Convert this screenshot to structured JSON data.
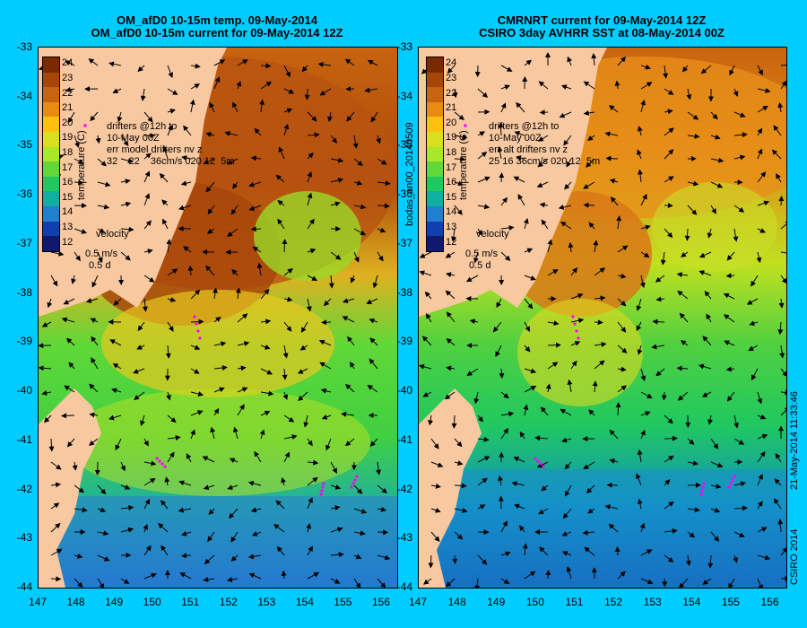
{
  "panels": [
    {
      "title_line1": "OM_afD0 10-15m temp. 09-May-2014",
      "title_line2": "OM_afD0 10-15m current for 09-May-2014 12Z",
      "drifters_text": "drifters @12h to\n10-May 00Z\nerr model drifters nv z\n32    22    36cm/s 020 12  5m",
      "velocity_label": "velocity",
      "velocity_scale": "0.5 m/s",
      "velocity_time": "0.5 d",
      "colorbar_label": "temperature (C)"
    },
    {
      "title_line1": "CMRNRT current for 09-May-2014 12Z",
      "title_line2": "CSIRO 3day AVHRR SST at 08-May-2014 00Z",
      "drifters_text": "drifters @12h to\n10-May 00Z\nerr alt drifters nv z\n25 16 36cm/s 020 12  5m",
      "velocity_label": "velocity",
      "velocity_scale": "0.5 m/s",
      "velocity_time": "0.5 d",
      "colorbar_label": "temperature (C)"
    }
  ],
  "axes": {
    "lon_ticks": [
      "147",
      "148",
      "149",
      "150",
      "151",
      "152",
      "153",
      "154",
      "155",
      "156"
    ],
    "lat_ticks": [
      "-33",
      "-34",
      "-35",
      "-36",
      "-37",
      "-38",
      "-39",
      "-40",
      "-41",
      "-42",
      "-43",
      "-44"
    ]
  },
  "colorbar": {
    "ticks": [
      "24",
      "23",
      "22",
      "21",
      "20",
      "19",
      "18",
      "17",
      "16",
      "15",
      "14",
      "13",
      "12"
    ],
    "colors": [
      "#7a2a00",
      "#a8460a",
      "#c8640f",
      "#e88a14",
      "#ffc010",
      "#d8e020",
      "#a8e828",
      "#60d838",
      "#20c860",
      "#10b0a0",
      "#2080d0",
      "#1040b0",
      "#101870"
    ]
  },
  "side_labels": {
    "between": "bodas_an00_20140509",
    "right_date": "21-May-2014 11:33:46",
    "right_copyright": "CSIRO 2014"
  },
  "colors": {
    "background": "#00ccff",
    "land": "#f8c8a0",
    "drifter": "#ff00ff"
  }
}
